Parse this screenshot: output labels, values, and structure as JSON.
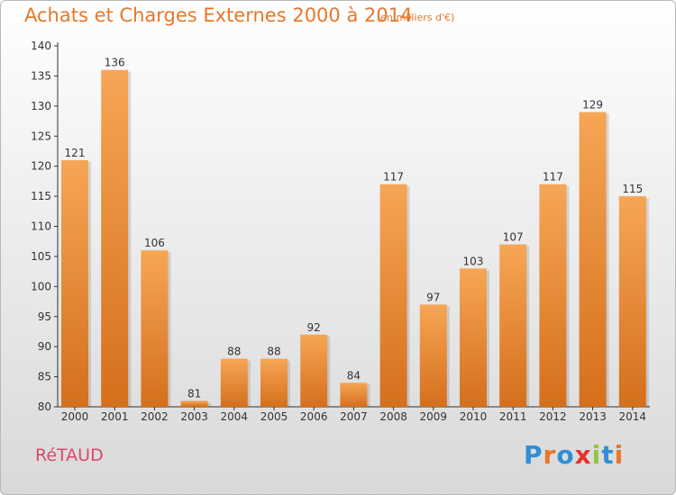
{
  "header": {
    "title": "Achats et Charges Externes 2000 à 2014",
    "subtitle": "(en milliers d'€)"
  },
  "footer": {
    "commune": "RéTAUD",
    "logo_text": "Proxiti",
    "logo_colors": [
      "#2e8fd4",
      "#e8762b",
      "#2e8fd4",
      "#e8302b",
      "#8fc63f",
      "#2e8fd4",
      "#e8762b"
    ]
  },
  "colors": {
    "bar_light": "#f6a655",
    "bar_dark": "#d56f1c",
    "axis": "#333333",
    "text": "#333333"
  },
  "chart_data": {
    "type": "bar",
    "title": "Achats et Charges Externes 2000 à 2014",
    "subtitle": "(en milliers d'€)",
    "categories": [
      "2000",
      "2001",
      "2002",
      "2003",
      "2004",
      "2005",
      "2006",
      "2007",
      "2008",
      "2009",
      "2010",
      "2011",
      "2012",
      "2013",
      "2014"
    ],
    "values": [
      121,
      136,
      106,
      81,
      88,
      88,
      92,
      84,
      117,
      97,
      103,
      107,
      117,
      129,
      115
    ],
    "ylim": [
      80,
      140
    ],
    "yticks": [
      80,
      85,
      90,
      95,
      100,
      105,
      110,
      115,
      120,
      125,
      130,
      135,
      140
    ],
    "grid": false,
    "data_labels": true
  }
}
